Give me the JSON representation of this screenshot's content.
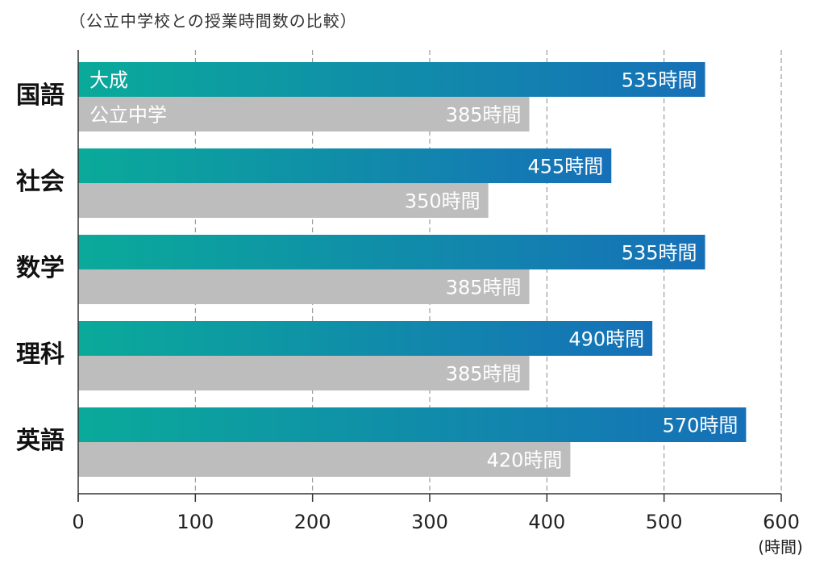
{
  "chart_data": {
    "type": "bar",
    "orientation": "horizontal",
    "title": "（公立中学校との授業時間数の比較）",
    "categories": [
      "国語",
      "社会",
      "数学",
      "理科",
      "英語"
    ],
    "series": [
      {
        "name": "大成",
        "values": [
          535,
          455,
          535,
          490,
          570
        ],
        "color_start": "#0aaa9a",
        "color_end": "#1670b8"
      },
      {
        "name": "公立中学",
        "values": [
          385,
          350,
          385,
          385,
          420
        ],
        "color": "#bdbdbd"
      }
    ],
    "value_suffix": "時間",
    "xlim": [
      0,
      600
    ],
    "xticks": [
      0,
      100,
      200,
      300,
      400,
      500,
      600
    ],
    "x_unit": "(時間)",
    "grid": "dashed-vertical",
    "legend": "inline-in-first-bars"
  }
}
